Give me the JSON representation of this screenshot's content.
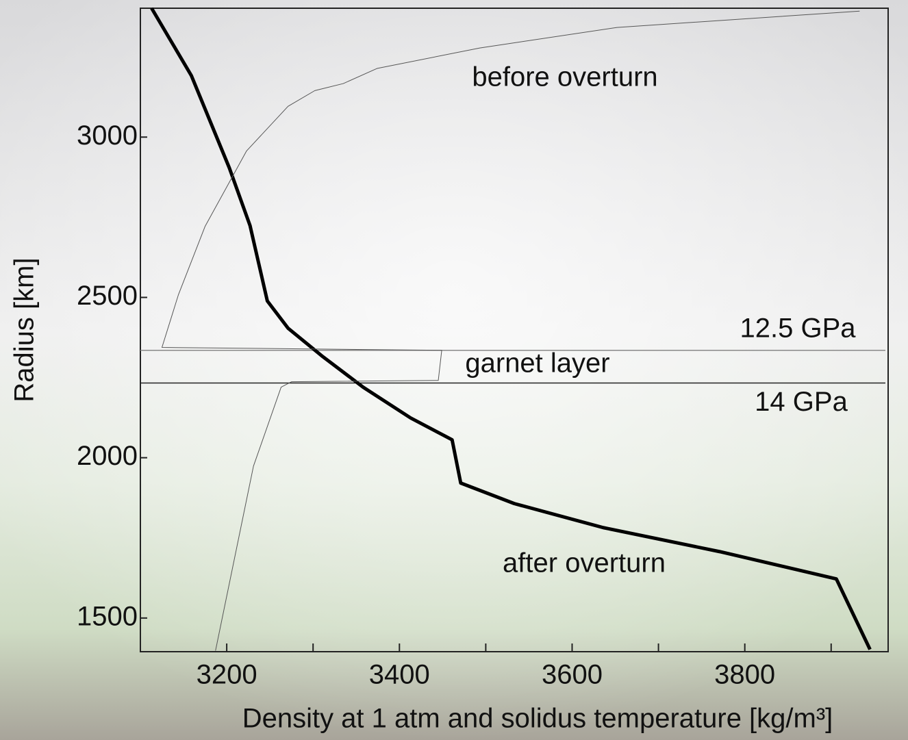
{
  "chart_data": {
    "type": "line",
    "xlabel": "Density at 1 atm and solidus temperature [kg/m³]",
    "ylabel": "Radius [km]",
    "xlim": [
      3100,
      3966
    ],
    "ylim": [
      1395,
      3402
    ],
    "xticks": [
      3200,
      3400,
      3600,
      3800
    ],
    "xminorticks": [
      3300,
      3500,
      3700,
      3900
    ],
    "yticks": [
      1500,
      2000,
      2500,
      3000
    ],
    "hlines": [
      {
        "value": 2335,
        "label": "12.5 GPa"
      },
      {
        "value": 2233,
        "label": "14 GPa"
      }
    ],
    "annotations": [
      "before overturn",
      "garnet layer",
      "after overturn"
    ],
    "series": [
      {
        "color": "#000000",
        "width": 5,
        "x": [
          3113,
          3159,
          3203,
          3227,
          3247,
          3271,
          3310,
          3358,
          3413,
          3461,
          3471,
          3533,
          3636,
          3771,
          3906,
          3945
        ],
        "values": [
          3402,
          3192,
          2904,
          2724,
          2489,
          2404,
          2318,
          2220,
          2124,
          2056,
          1921,
          1857,
          1782,
          1707,
          1622,
          1402
        ]
      },
      {
        "color": "#555555",
        "width": 1,
        "x": [
          3933,
          3652,
          3493,
          3374,
          3335,
          3302,
          3271,
          3223,
          3175,
          3144,
          3125,
          3449,
          3445,
          3275,
          3263,
          3231,
          3187
        ],
        "values": [
          3393,
          3342,
          3278,
          3214,
          3167,
          3145,
          3096,
          2957,
          2722,
          2508,
          2344,
          2335,
          2241,
          2237,
          2220,
          1974,
          1398
        ]
      }
    ]
  }
}
